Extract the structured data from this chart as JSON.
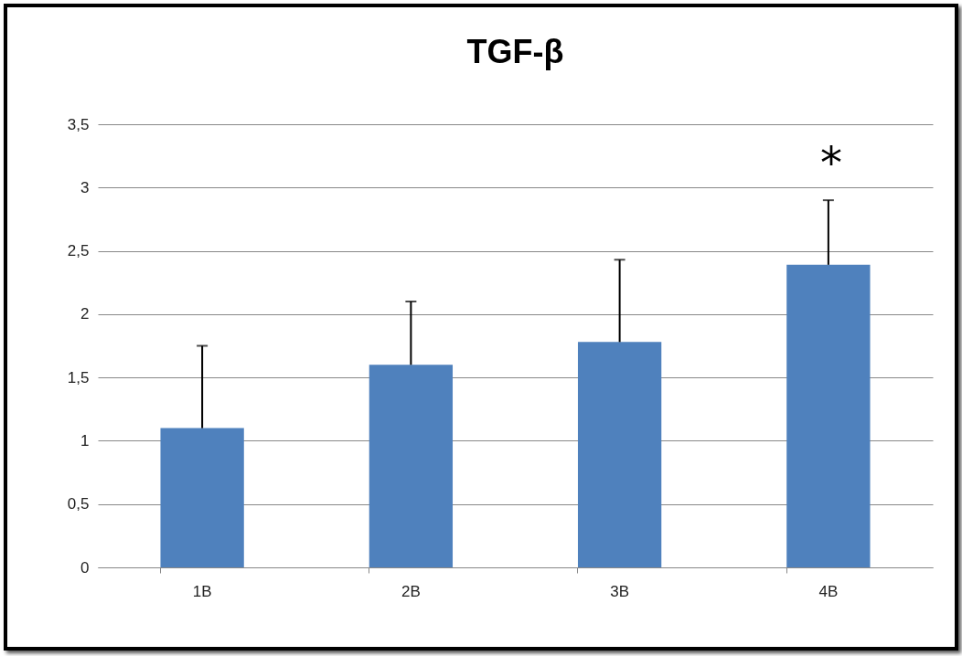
{
  "chart_data": {
    "type": "bar",
    "title": "TGF-β",
    "categories": [
      "1B",
      "2B",
      "3B",
      "4B"
    ],
    "values": [
      1.1,
      1.6,
      1.78,
      2.39
    ],
    "errors": [
      [
        1.1,
        1.75
      ],
      [
        1.6,
        2.1
      ],
      [
        1.78,
        2.43
      ],
      [
        2.39,
        2.9
      ]
    ],
    "color": "#4f81bd",
    "ylim": [
      0,
      3.5
    ],
    "yticks": [
      0,
      {
        "value": 0.5,
        "label": "0,5"
      },
      1,
      {
        "value": 1.5,
        "label": "1,5"
      },
      2,
      {
        "value": 2.5,
        "label": "2,5"
      },
      3,
      {
        "value": 3.5,
        "label": "3,5"
      }
    ],
    "grid": "y",
    "annotations": [
      "*"
    ]
  }
}
